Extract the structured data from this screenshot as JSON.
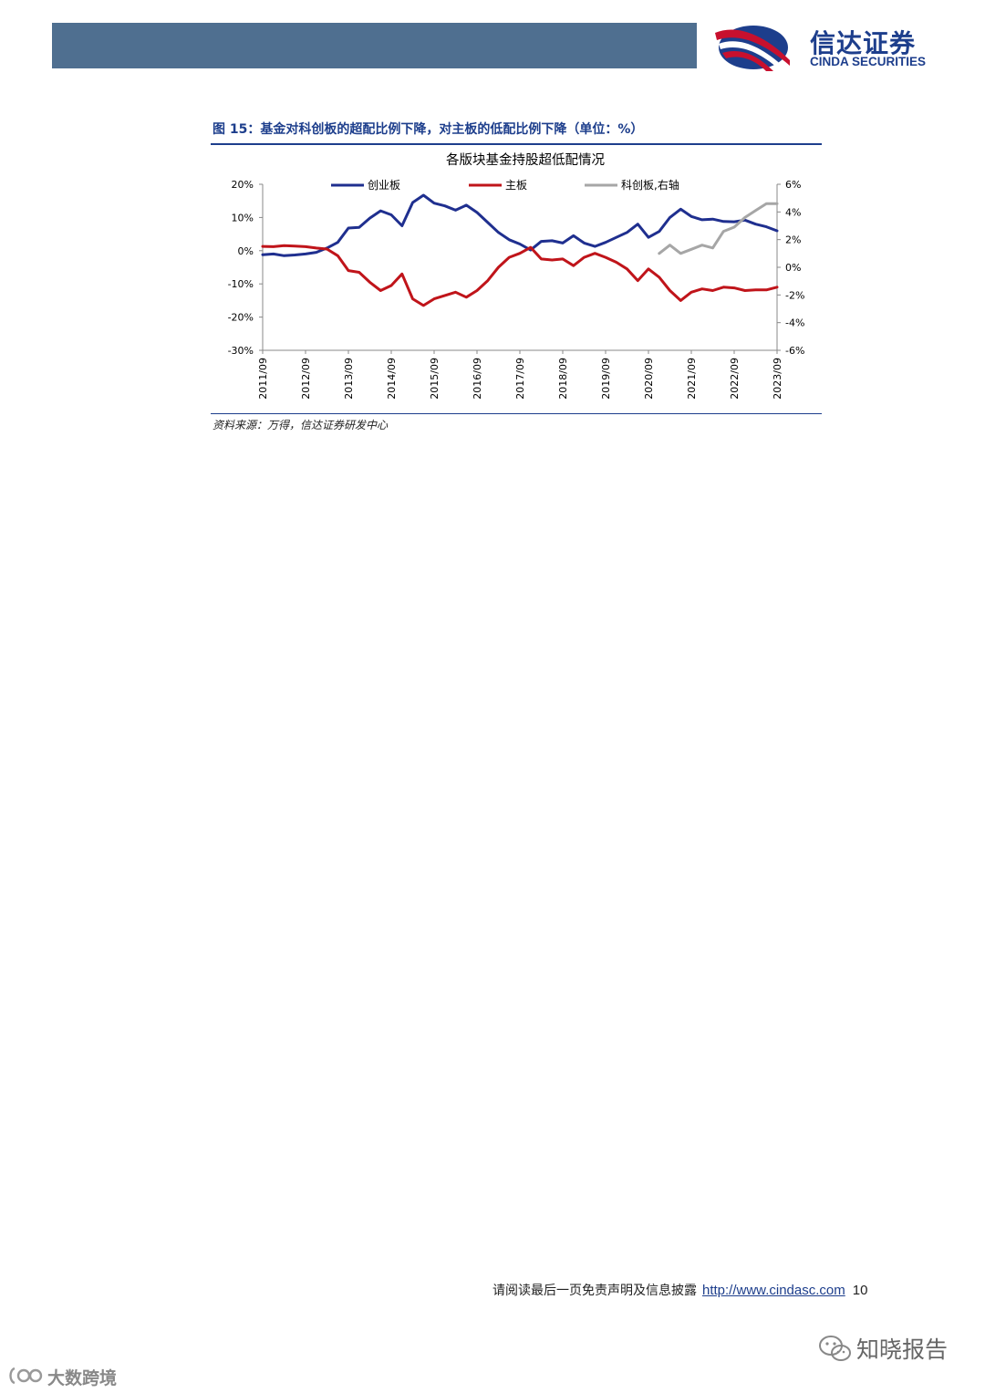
{
  "header": {
    "logo_cn": "信达证券",
    "logo_en": "CINDA SECURITIES",
    "brand_colors": {
      "bar": "#4f6f90",
      "logo_red": "#c8102e",
      "logo_blue": "#1d3e8c"
    }
  },
  "figure": {
    "title": "图 15：基金对科创板的超配比例下降，对主板的低配比例下降（单位：%）",
    "source": "资料来源：万得，信达证券研发中心"
  },
  "chart_data": {
    "type": "line",
    "title": "各版块基金持股超低配情况",
    "x_labels": [
      "2011/09",
      "2012/09",
      "2013/09",
      "2014/09",
      "2015/09",
      "2016/09",
      "2017/09",
      "2018/09",
      "2019/09",
      "2020/09",
      "2021/09",
      "2022/09",
      "2023/09"
    ],
    "y_left": {
      "ticks": [
        "20%",
        "10%",
        "0%",
        "-10%",
        "-20%",
        "-30%"
      ],
      "min": -30,
      "max": 20
    },
    "y_right": {
      "ticks": [
        "6%",
        "4%",
        "2%",
        "0%",
        "-2%",
        "-4%",
        "-6%"
      ],
      "min": -6,
      "max": 6
    },
    "legend": [
      "创业板",
      "主板",
      "科创板,右轴"
    ],
    "legend_position": "top",
    "grid": false,
    "series": [
      {
        "name": "创业板",
        "axis": "left",
        "color": "#1f2f8f",
        "x": [
          2011.75,
          2012,
          2012.25,
          2012.5,
          2012.75,
          2013,
          2013.25,
          2013.5,
          2013.75,
          2014,
          2014.25,
          2014.5,
          2014.75,
          2015,
          2015.25,
          2015.5,
          2015.75,
          2016,
          2016.25,
          2016.5,
          2016.75,
          2017,
          2017.25,
          2017.5,
          2017.75,
          2018,
          2018.25,
          2018.5,
          2018.75,
          2019,
          2019.25,
          2019.5,
          2019.75,
          2020,
          2020.25,
          2020.5,
          2020.75,
          2021,
          2021.25,
          2021.5,
          2021.75,
          2022,
          2022.25,
          2022.5,
          2022.75,
          2023,
          2023.25,
          2023.5,
          2023.75
        ],
        "values": [
          -1.2,
          -1,
          -1.5,
          -1.3,
          -1,
          -0.5,
          0.8,
          2.5,
          6.8,
          7,
          9.8,
          12,
          10.8,
          7.5,
          14.5,
          16.7,
          14.3,
          13.5,
          12.2,
          13.7,
          11.5,
          8.5,
          5.5,
          3.3,
          2,
          0.2,
          2.8,
          3,
          2.3,
          4.5,
          2.3,
          1.3,
          2.5,
          4,
          5.5,
          8,
          4,
          5.8,
          10,
          12.5,
          10.3,
          9.3,
          9.5,
          8.8,
          8.7,
          9.2,
          8,
          7.2,
          6
        ]
      },
      {
        "name": "主板",
        "axis": "left",
        "color": "#c0141a",
        "x": [
          2011.75,
          2012,
          2012.25,
          2012.5,
          2012.75,
          2013,
          2013.25,
          2013.5,
          2013.75,
          2014,
          2014.25,
          2014.5,
          2014.75,
          2015,
          2015.25,
          2015.5,
          2015.75,
          2016,
          2016.25,
          2016.5,
          2016.75,
          2017,
          2017.25,
          2017.5,
          2017.75,
          2018,
          2018.25,
          2018.5,
          2018.75,
          2019,
          2019.25,
          2019.5,
          2019.75,
          2020,
          2020.25,
          2020.5,
          2020.75,
          2021,
          2021.25,
          2021.5,
          2021.75,
          2022,
          2022.25,
          2022.5,
          2022.75,
          2023,
          2023.25,
          2023.5,
          2023.75
        ],
        "values": [
          1.3,
          1.2,
          1.5,
          1.4,
          1.2,
          0.8,
          0.5,
          -1.5,
          -6,
          -6.5,
          -9.5,
          -12,
          -10.5,
          -7,
          -14.5,
          -16.5,
          -14.5,
          -13.5,
          -12.5,
          -14,
          -12,
          -9,
          -5,
          -2,
          -0.8,
          1,
          -2.5,
          -2.8,
          -2.5,
          -4.5,
          -2,
          -0.8,
          -2,
          -3.5,
          -5.5,
          -9,
          -5.5,
          -8,
          -12,
          -15,
          -12.5,
          -11.5,
          -12,
          -11,
          -11.2,
          -12,
          -11.8,
          -11.8,
          -11
        ]
      },
      {
        "name": "科创板,右轴",
        "axis": "right",
        "color": "#a6a6a6",
        "x": [
          2021,
          2021.25,
          2021.5,
          2021.75,
          2022,
          2022.25,
          2022.5,
          2022.75,
          2023,
          2023.25,
          2023.5,
          2023.75
        ],
        "values": [
          1,
          1.6,
          1,
          1.3,
          1.6,
          1.4,
          2.6,
          2.9,
          3.6,
          4.1,
          4.6,
          4.6
        ]
      }
    ]
  },
  "footer": {
    "disclaimer": "请阅读最后一页免责声明及信息披露",
    "url": "http://www.cindasc.com",
    "page": "10"
  },
  "watermarks": {
    "right": "知晓报告",
    "left": "大数跨境"
  }
}
